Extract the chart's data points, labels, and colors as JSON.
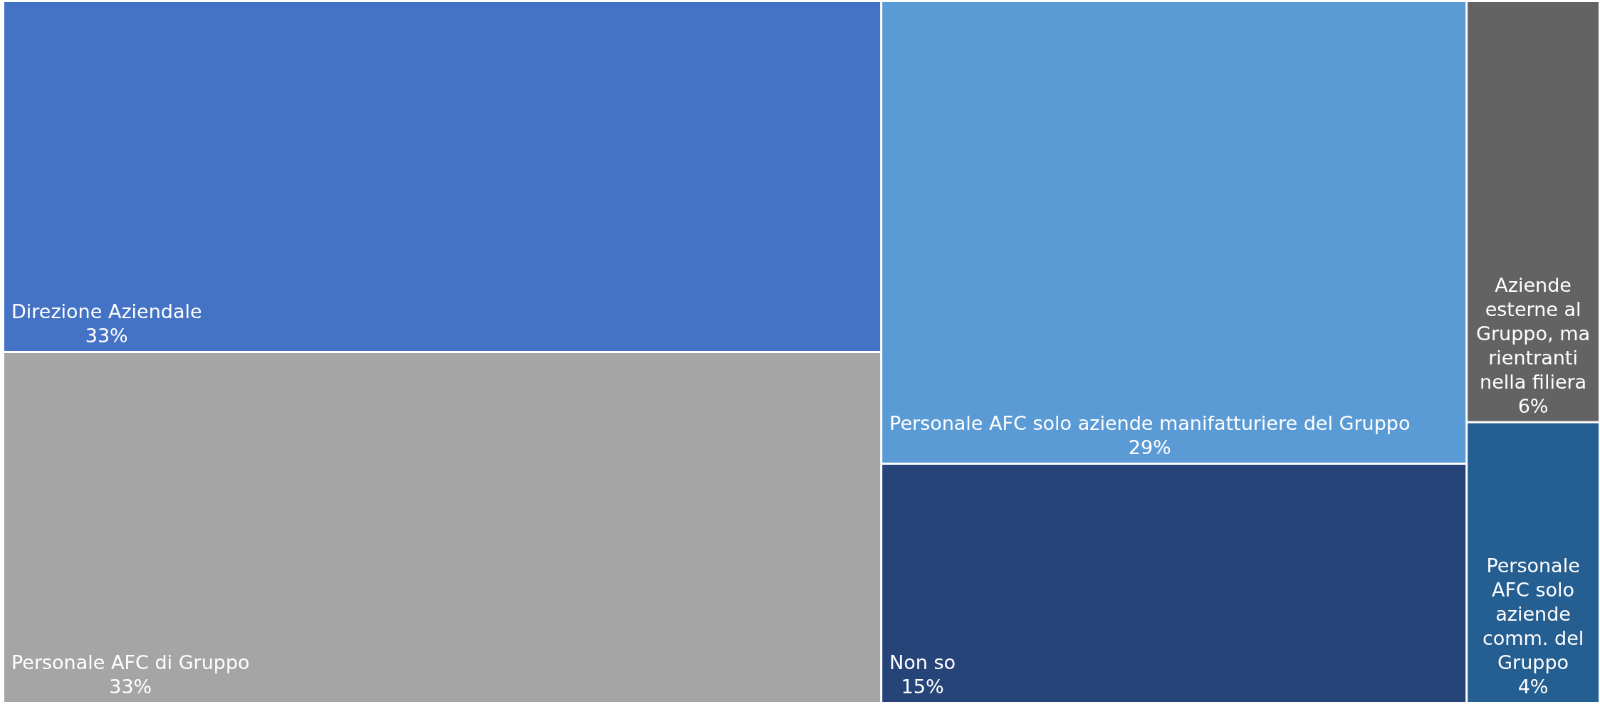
{
  "chart_data": {
    "type": "other",
    "categories": [
      "Direzione Aziendale",
      "Personale AFC di Gruppo",
      "Personale AFC solo aziende manifatturiere del Gruppo",
      "Non so",
      "Aziende esterne al Gruppo, ma rientranti nella filiera",
      "Personale AFC solo aziende comm. del Gruppo"
    ],
    "values": [
      33,
      33,
      29,
      15,
      6,
      4
    ],
    "value_labels": [
      "33%",
      "33%",
      "29%",
      "15%",
      "6%",
      "4%"
    ],
    "colors": [
      "#4472c4",
      "#a5a5a5",
      "#5b9bd5",
      "#264478",
      "#636363",
      "#255e91"
    ]
  }
}
